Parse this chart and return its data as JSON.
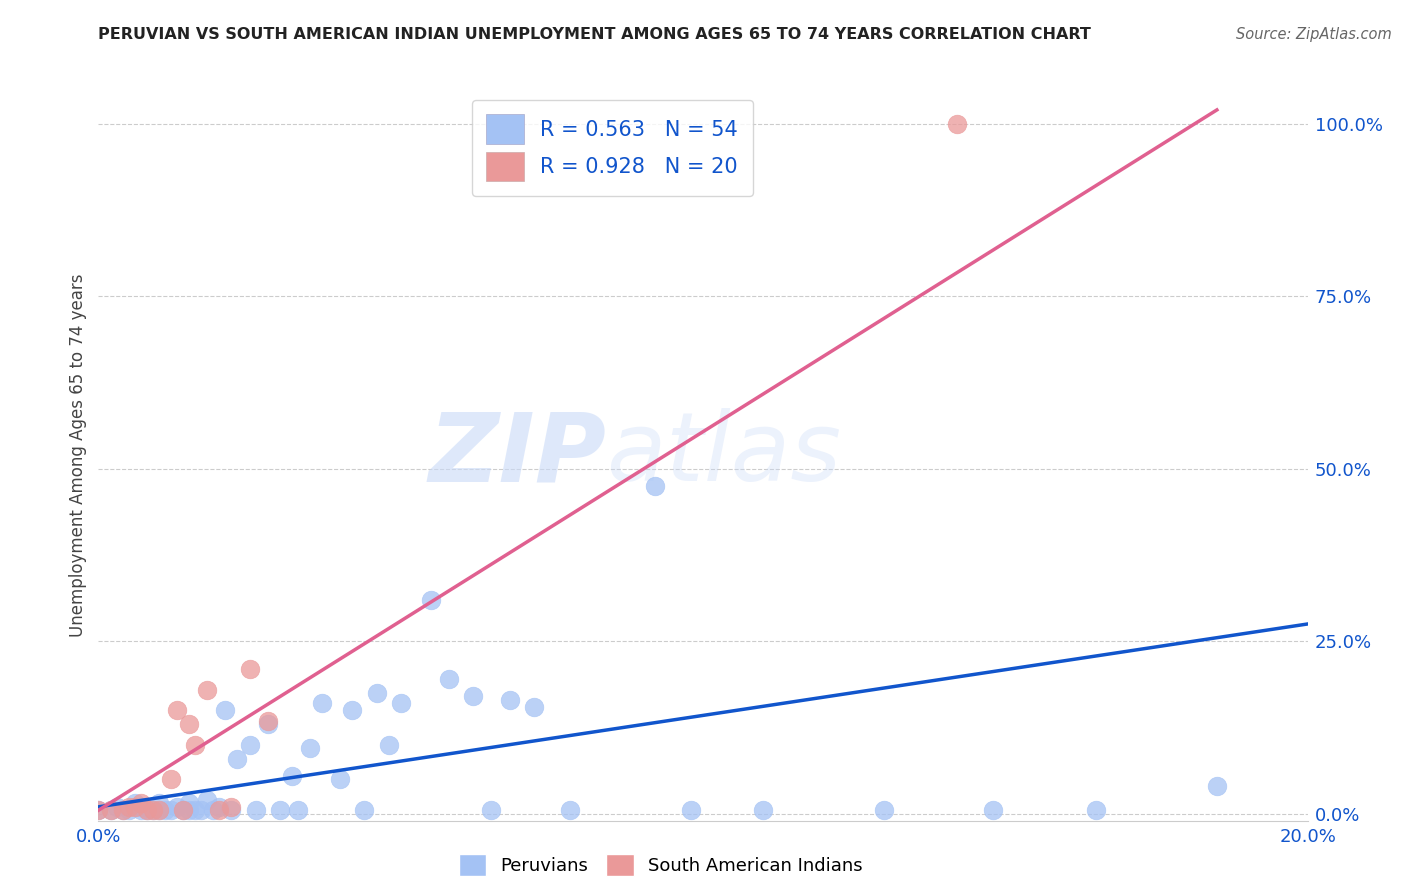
{
  "title": "PERUVIAN VS SOUTH AMERICAN INDIAN UNEMPLOYMENT AMONG AGES 65 TO 74 YEARS CORRELATION CHART",
  "source": "Source: ZipAtlas.com",
  "ylabel": "Unemployment Among Ages 65 to 74 years",
  "xlim": [
    0.0,
    0.2
  ],
  "ylim": [
    -0.01,
    1.05
  ],
  "ytick_positions": [
    0.0,
    0.25,
    0.5,
    0.75,
    1.0
  ],
  "ytick_labels": [
    "0.0%",
    "25.0%",
    "50.0%",
    "75.0%",
    "100.0%"
  ],
  "xtick_positions": [
    0.0,
    0.05,
    0.1,
    0.15,
    0.2
  ],
  "xtick_labels": [
    "0.0%",
    "",
    "",
    "",
    "20.0%"
  ],
  "blue_R": 0.563,
  "blue_N": 54,
  "pink_R": 0.928,
  "pink_N": 20,
  "blue_color": "#a4c2f4",
  "pink_color": "#ea9999",
  "blue_line_color": "#1155cc",
  "pink_line_color": "#e06090",
  "legend_text_color": "#1155cc",
  "watermark_color": "#c9daf8",
  "blue_trend_x": [
    0.0,
    0.2
  ],
  "blue_trend_y": [
    0.01,
    0.275
  ],
  "pink_trend_x": [
    0.0,
    0.185
  ],
  "pink_trend_y": [
    0.005,
    1.02
  ],
  "blue_x": [
    0.0,
    0.002,
    0.003,
    0.004,
    0.005,
    0.006,
    0.007,
    0.007,
    0.008,
    0.009,
    0.01,
    0.01,
    0.011,
    0.012,
    0.013,
    0.014,
    0.015,
    0.015,
    0.016,
    0.017,
    0.018,
    0.019,
    0.02,
    0.021,
    0.022,
    0.023,
    0.025,
    0.026,
    0.028,
    0.03,
    0.032,
    0.033,
    0.035,
    0.037,
    0.04,
    0.042,
    0.044,
    0.046,
    0.048,
    0.05,
    0.055,
    0.058,
    0.062,
    0.065,
    0.068,
    0.072,
    0.078,
    0.092,
    0.098,
    0.11,
    0.13,
    0.148,
    0.165,
    0.185
  ],
  "blue_y": [
    0.005,
    0.005,
    0.01,
    0.005,
    0.005,
    0.015,
    0.005,
    0.01,
    0.005,
    0.005,
    0.005,
    0.015,
    0.005,
    0.005,
    0.01,
    0.005,
    0.005,
    0.015,
    0.005,
    0.005,
    0.02,
    0.005,
    0.01,
    0.15,
    0.005,
    0.08,
    0.1,
    0.005,
    0.13,
    0.005,
    0.055,
    0.005,
    0.095,
    0.16,
    0.05,
    0.15,
    0.005,
    0.175,
    0.1,
    0.16,
    0.31,
    0.195,
    0.17,
    0.005,
    0.165,
    0.155,
    0.005,
    0.475,
    0.005,
    0.005,
    0.005,
    0.005,
    0.005,
    0.04
  ],
  "pink_x": [
    0.0,
    0.002,
    0.004,
    0.005,
    0.006,
    0.007,
    0.008,
    0.009,
    0.01,
    0.012,
    0.013,
    0.014,
    0.015,
    0.016,
    0.018,
    0.02,
    0.022,
    0.025,
    0.028,
    0.142
  ],
  "pink_y": [
    0.005,
    0.005,
    0.005,
    0.01,
    0.01,
    0.015,
    0.005,
    0.005,
    0.005,
    0.05,
    0.15,
    0.005,
    0.13,
    0.1,
    0.18,
    0.005,
    0.01,
    0.21,
    0.135,
    1.0
  ]
}
